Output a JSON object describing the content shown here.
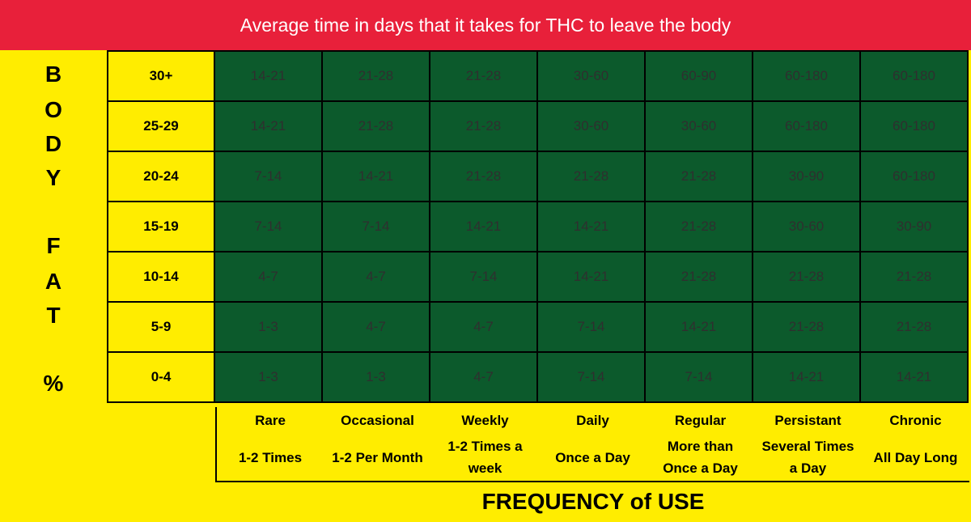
{
  "title": "Average time in days that it takes for THC to leave the body",
  "ylabel_letters": [
    "B",
    "O",
    "D",
    "Y",
    "",
    "F",
    "A",
    "T",
    "",
    "%"
  ],
  "xlabel": "FREQUENCY of USE",
  "chart_data": {
    "type": "table",
    "title": "Average time in days that it takes for THC to leave the body",
    "ylabel": "BODY FAT %",
    "xlabel": "FREQUENCY of USE",
    "row_labels": [
      "30+",
      "25-29",
      "20-24",
      "15-19",
      "10-14",
      "5-9",
      "0-4"
    ],
    "columns": [
      {
        "name": "Rare",
        "desc": "1-2 Times"
      },
      {
        "name": "Occasional",
        "desc": "1-2 Per Month"
      },
      {
        "name": "Weekly",
        "desc": "1-2 Times a\nweek"
      },
      {
        "name": "Daily",
        "desc": "Once a Day"
      },
      {
        "name": "Regular",
        "desc": "More than\nOnce a Day"
      },
      {
        "name": "Persistant",
        "desc": "Several Times\na Day"
      },
      {
        "name": "Chronic",
        "desc": "All Day Long"
      }
    ],
    "rows": [
      [
        "14-21",
        "21-28",
        "21-28",
        "30-60",
        "60-90",
        "60-180",
        "60-180"
      ],
      [
        "14-21",
        "21-28",
        "21-28",
        "30-60",
        "30-60",
        "60-180",
        "60-180"
      ],
      [
        "7-14",
        "14-21",
        "21-28",
        "21-28",
        "21-28",
        "30-90",
        "60-180"
      ],
      [
        "7-14",
        "7-14",
        "14-21",
        "14-21",
        "21-28",
        "30-60",
        "30-90"
      ],
      [
        "4-7",
        "4-7",
        "7-14",
        "14-21",
        "21-28",
        "21-28",
        "21-28"
      ],
      [
        "1-3",
        "4-7",
        "4-7",
        "7-14",
        "14-21",
        "21-28",
        "21-28"
      ],
      [
        "1-3",
        "1-3",
        "4-7",
        "7-14",
        "7-14",
        "14-21",
        "14-21"
      ]
    ]
  },
  "colors": {
    "header_red": "#e8203a",
    "background_yellow": "#ffed00",
    "cell_green": "#0c5a2c"
  }
}
